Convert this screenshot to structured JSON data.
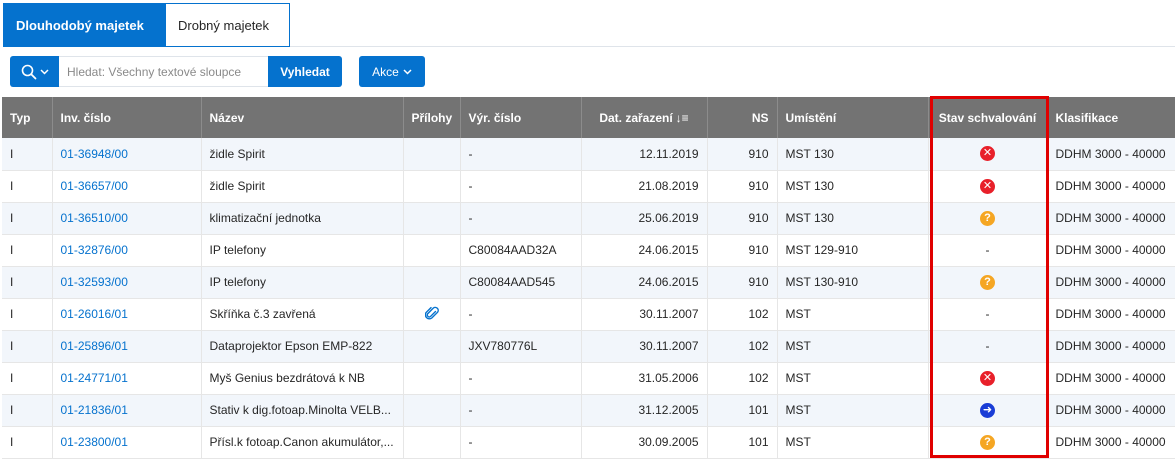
{
  "tabs": [
    {
      "label": "Dlouhodobý majetek",
      "active": true
    },
    {
      "label": "Drobný majetek",
      "active": false
    }
  ],
  "toolbar": {
    "search_placeholder": "Hledat: Všechny textové sloupce",
    "search_button": "Vyhledat",
    "actions_button": "Akce"
  },
  "table": {
    "columns": [
      "Typ",
      "Inv. číslo",
      "Název",
      "Přílohy",
      "Výr. číslo",
      "Dat. zařazení",
      "NS",
      "Umístění",
      "Stav schvalování",
      "Klasifikace"
    ],
    "sort_indicator": "↓≡",
    "rows": [
      {
        "typ": "I",
        "inv": "01-36948/00",
        "nazev": "židle Spirit",
        "prilohy": "",
        "vyr": "-",
        "datum": "12.11.2019",
        "ns": "910",
        "umisteni": "MST 130",
        "stav": "rejected",
        "klasifikace": "DDHM 3000 - 40000"
      },
      {
        "typ": "I",
        "inv": "01-36657/00",
        "nazev": "židle Spirit",
        "prilohy": "",
        "vyr": "-",
        "datum": "21.08.2019",
        "ns": "910",
        "umisteni": "MST 130",
        "stav": "rejected",
        "klasifikace": "DDHM 3000 - 40000"
      },
      {
        "typ": "I",
        "inv": "01-36510/00",
        "nazev": "klimatizační jednotka",
        "prilohy": "",
        "vyr": "-",
        "datum": "25.06.2019",
        "ns": "910",
        "umisteni": "MST 130",
        "stav": "pending",
        "klasifikace": "DDHM 3000 - 40000"
      },
      {
        "typ": "I",
        "inv": "01-32876/00",
        "nazev": "IP telefony",
        "prilohy": "",
        "vyr": "C80084AAD32A",
        "datum": "24.06.2015",
        "ns": "910",
        "umisteni": "MST 129-910",
        "stav": "-",
        "klasifikace": "DDHM 3000 - 40000"
      },
      {
        "typ": "I",
        "inv": "01-32593/00",
        "nazev": "IP telefony",
        "prilohy": "",
        "vyr": "C80084AAD545",
        "datum": "24.06.2015",
        "ns": "910",
        "umisteni": "MST 130-910",
        "stav": "pending",
        "klasifikace": "DDHM 3000 - 40000"
      },
      {
        "typ": "I",
        "inv": "01-26016/01",
        "nazev": "Skříňka č.3 zavřená",
        "prilohy": "paperclip",
        "vyr": "-",
        "datum": "30.11.2007",
        "ns": "102",
        "umisteni": "MST",
        "stav": "-",
        "klasifikace": "DDHM 3000 - 40000"
      },
      {
        "typ": "I",
        "inv": "01-25896/01",
        "nazev": "Dataprojektor Epson EMP-822",
        "prilohy": "",
        "vyr": "JXV780776L",
        "datum": "30.11.2007",
        "ns": "102",
        "umisteni": "MST",
        "stav": "-",
        "klasifikace": "DDHM 3000 - 40000"
      },
      {
        "typ": "I",
        "inv": "01-24771/01",
        "nazev": "Myš Genius bezdrátová k NB",
        "prilohy": "",
        "vyr": "-",
        "datum": "31.05.2006",
        "ns": "102",
        "umisteni": "MST",
        "stav": "rejected",
        "klasifikace": "DDHM 3000 - 40000"
      },
      {
        "typ": "I",
        "inv": "01-21836/01",
        "nazev": "Stativ k dig.fotoap.Minolta VELB...",
        "prilohy": "",
        "vyr": "-",
        "datum": "31.12.2005",
        "ns": "101",
        "umisteni": "MST",
        "stav": "forwarded",
        "klasifikace": "DDHM 3000 - 40000"
      },
      {
        "typ": "I",
        "inv": "01-23800/01",
        "nazev": "Přísl.k fotoap.Canon akumulátor,...",
        "prilohy": "",
        "vyr": "-",
        "datum": "30.09.2005",
        "ns": "101",
        "umisteni": "MST",
        "stav": "pending",
        "klasifikace": "DDHM 3000 - 40000"
      }
    ]
  },
  "colors": {
    "accent": "#0572ce",
    "header_bg": "#737373",
    "highlight": "#e00000",
    "rejected": "#e8202a",
    "pending": "#f5a623",
    "forwarded": "#1a3dd6"
  }
}
